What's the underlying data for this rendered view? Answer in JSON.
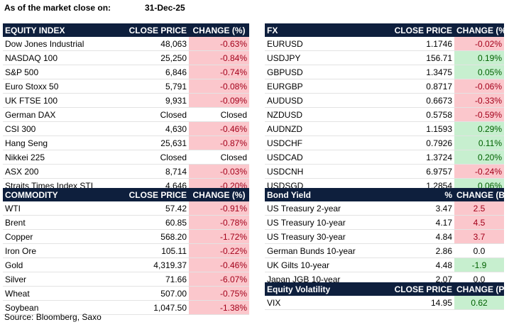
{
  "header": {
    "label": "As of the market close on:",
    "date": "31-Dec-25"
  },
  "equity": {
    "headers": [
      "EQUITY INDEX",
      "CLOSE PRICE",
      "CHANGE (%)"
    ],
    "rows": [
      {
        "name": "Dow Jones Industrial",
        "price": "48,063",
        "change": "-0.63%",
        "status": "neg"
      },
      {
        "name": "NASDAQ 100",
        "price": "25,250",
        "change": "-0.84%",
        "status": "neg"
      },
      {
        "name": "S&P 500",
        "price": "6,846",
        "change": "-0.74%",
        "status": "neg"
      },
      {
        "name": "Euro Stoxx 50",
        "price": "5,791",
        "change": "-0.08%",
        "status": "neg"
      },
      {
        "name": "UK FTSE 100",
        "price": "9,931",
        "change": "-0.09%",
        "status": "neg"
      },
      {
        "name": "German DAX",
        "price": "Closed",
        "change": "Closed",
        "status": "neutral"
      },
      {
        "name": "CSI 300",
        "price": "4,630",
        "change": "-0.46%",
        "status": "neg"
      },
      {
        "name": "Hang Seng",
        "price": "25,631",
        "change": "-0.87%",
        "status": "neg"
      },
      {
        "name": "Nikkei 225",
        "price": "Closed",
        "change": "Closed",
        "status": "neutral"
      },
      {
        "name": "ASX 200",
        "price": "8,714",
        "change": "-0.03%",
        "status": "neg"
      },
      {
        "name": "Straits Times Index STI",
        "price": "4,646",
        "change": "-0.20%",
        "status": "neg"
      }
    ]
  },
  "fx": {
    "headers": [
      "FX",
      "CLOSE PRICE",
      "CHANGE (%)"
    ],
    "rows": [
      {
        "name": "EURUSD",
        "price": "1.1746",
        "change": "-0.02%",
        "status": "neg"
      },
      {
        "name": "USDJPY",
        "price": "156.71",
        "change": "0.19%",
        "status": "pos"
      },
      {
        "name": "GBPUSD",
        "price": "1.3475",
        "change": "0.05%",
        "status": "pos"
      },
      {
        "name": "EURGBP",
        "price": "0.8717",
        "change": "-0.06%",
        "status": "neg"
      },
      {
        "name": "AUDUSD",
        "price": "0.6673",
        "change": "-0.33%",
        "status": "neg"
      },
      {
        "name": "NZDUSD",
        "price": "0.5758",
        "change": "-0.59%",
        "status": "neg"
      },
      {
        "name": "AUDNZD",
        "price": "1.1593",
        "change": "0.29%",
        "status": "pos"
      },
      {
        "name": "USDCHF",
        "price": "0.7926",
        "change": "0.11%",
        "status": "pos"
      },
      {
        "name": "USDCAD",
        "price": "1.3724",
        "change": "0.20%",
        "status": "pos"
      },
      {
        "name": "USDCNH",
        "price": "6.9757",
        "change": "-0.24%",
        "status": "neg"
      },
      {
        "name": "USDSGD",
        "price": "1.2854",
        "change": "0.06%",
        "status": "pos"
      }
    ]
  },
  "commodity": {
    "headers": [
      "COMMODITY",
      "CLOSE PRICE",
      "CHANGE (%)"
    ],
    "rows": [
      {
        "name": "WTI",
        "price": "57.42",
        "change": "-0.91%",
        "status": "neg"
      },
      {
        "name": "Brent",
        "price": "60.85",
        "change": "-0.78%",
        "status": "neg"
      },
      {
        "name": "Copper",
        "price": "568.20",
        "change": "-1.72%",
        "status": "neg"
      },
      {
        "name": "Iron Ore",
        "price": "105.11",
        "change": "-0.22%",
        "status": "neg"
      },
      {
        "name": "Gold",
        "price": "4,319.37",
        "change": "-0.46%",
        "status": "neg"
      },
      {
        "name": "Silver",
        "price": "71.66",
        "change": "-6.07%",
        "status": "neg"
      },
      {
        "name": "Wheat",
        "price": "507.00",
        "change": "-0.75%",
        "status": "neg"
      },
      {
        "name": "Soybean",
        "price": "1,047.50",
        "change": "-1.38%",
        "status": "neg"
      }
    ]
  },
  "bond": {
    "headers": [
      "Bond Yield",
      "%",
      "CHANGE (BPS)"
    ],
    "rows": [
      {
        "name": "US Treasury 2-year",
        "price": "3.47",
        "change": "2.5",
        "status": "neg"
      },
      {
        "name": "US Treasury 10-year",
        "price": "4.17",
        "change": "4.5",
        "status": "neg"
      },
      {
        "name": "US Treasury 30-year",
        "price": "4.84",
        "change": "3.7",
        "status": "neg"
      },
      {
        "name": "German Bunds 10-year",
        "price": "2.86",
        "change": "0.0",
        "status": "neutral"
      },
      {
        "name": "UK Gilts 10-year",
        "price": "4.48",
        "change": "-1.9",
        "status": "pos"
      },
      {
        "name": "Japan JGB 10-year",
        "price": "2.07",
        "change": "0.0",
        "status": "neutral"
      }
    ]
  },
  "volatility": {
    "headers": [
      "Equity Volatility",
      "CLOSE PRICE",
      "CHANGE (PP)"
    ],
    "rows": [
      {
        "name": "VIX",
        "price": "14.95",
        "change": "0.62",
        "status": "pos"
      }
    ]
  },
  "source": "Source: Bloomberg, Saxo"
}
